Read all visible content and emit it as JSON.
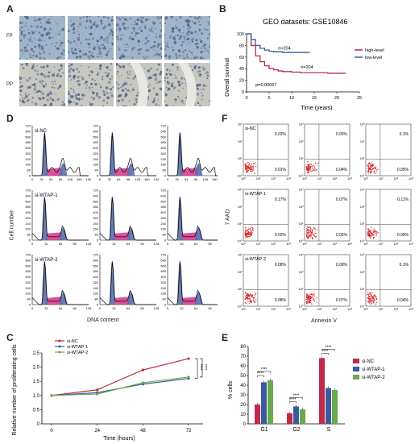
{
  "panels": {
    "A": "A",
    "B": "B",
    "C": "C",
    "D": "D",
    "E": "E",
    "F": "F"
  },
  "panel_a": {
    "row_labels": [
      "FP",
      "PP"
    ]
  },
  "chart_data": [
    {
      "id": "B",
      "type": "line",
      "title": "GEO datasets: GSE10846",
      "xlabel": "Time (years)",
      "ylabel": "Overall survival",
      "xlim": [
        0,
        25
      ],
      "ylim": [
        0,
        100
      ],
      "xticks": [
        0,
        5,
        10,
        15,
        20,
        25
      ],
      "yticks": [
        0,
        20,
        40,
        60,
        80,
        100
      ],
      "legend_position": "right",
      "annotations": [
        "n=204",
        "n=204",
        "p=0.00667"
      ],
      "series": [
        {
          "name": "high-level",
          "color": "#c0294a",
          "x": [
            0,
            1,
            2,
            3,
            4,
            5,
            6,
            7,
            8,
            10,
            12,
            15,
            18,
            22
          ],
          "y": [
            100,
            80,
            62,
            52,
            45,
            40,
            38,
            36,
            35,
            34,
            33,
            33,
            32,
            32
          ]
        },
        {
          "name": "low-level",
          "color": "#3a5a9a",
          "x": [
            0,
            1,
            2,
            3,
            4,
            5,
            6,
            8,
            10,
            12,
            14
          ],
          "y": [
            100,
            90,
            80,
            75,
            72,
            70,
            69,
            68,
            68,
            68,
            68
          ]
        }
      ]
    },
    {
      "id": "C",
      "type": "line",
      "xlabel": "Time (hours)",
      "ylabel": "Relative number of proliferating cells",
      "xticks": [
        0,
        24,
        48,
        72
      ],
      "yticks": [
        0,
        0.5,
        1.0,
        1.5,
        2.0,
        2.5
      ],
      "yticklabels": [
        "0",
        "0.5",
        "1.0",
        "1.5",
        "2.0",
        "2.5"
      ],
      "ylim": [
        0,
        2.5
      ],
      "significance": [
        "****",
        "****"
      ],
      "legend_position": "top",
      "series": [
        {
          "name": "si-NC",
          "color": "#c0294a",
          "x": [
            0,
            24,
            48,
            72
          ],
          "y": [
            1.0,
            1.2,
            1.9,
            2.3
          ]
        },
        {
          "name": "si-WTAP-1",
          "color": "#3a5a9a",
          "x": [
            0,
            24,
            48,
            72
          ],
          "y": [
            1.0,
            1.1,
            1.4,
            1.6
          ]
        },
        {
          "name": "si-WTAP-2",
          "color": "#6aa84f",
          "x": [
            0,
            24,
            48,
            72
          ],
          "y": [
            1.0,
            1.05,
            1.45,
            1.65
          ]
        }
      ]
    },
    {
      "id": "E",
      "type": "bar",
      "ylabel": "% cells",
      "categories": [
        "G1",
        "G2",
        "S"
      ],
      "yticks": [
        0,
        10,
        20,
        30,
        40,
        50,
        60,
        70,
        80
      ],
      "ylim": [
        0,
        80
      ],
      "significance": [
        "****",
        "****",
        "****",
        "****",
        "****",
        "****"
      ],
      "legend_position": "right",
      "series": [
        {
          "name": "si-NC",
          "color": "#c0294a",
          "values": [
            20,
            11,
            68
          ]
        },
        {
          "name": "si-WTAP-1",
          "color": "#3a5a9a",
          "values": [
            43,
            18,
            37
          ]
        },
        {
          "name": "si-WTAP-2",
          "color": "#6aa84f",
          "values": [
            45,
            15,
            35
          ]
        }
      ]
    }
  ],
  "panel_d": {
    "xlabel": "DNA content",
    "ylabel": "Cell number",
    "row_labels": [
      "si-NC",
      "si-WTAP-1",
      "si-WTAP-2"
    ],
    "yticks": [
      "0",
      "80",
      "160",
      "240",
      "320",
      "400",
      "480",
      "560",
      "640",
      "720"
    ],
    "xticks_row1": [
      "0",
      "32",
      "64",
      "96",
      "128",
      "160",
      "192"
    ],
    "xticks": [
      "0",
      "32",
      "64",
      "96",
      "128"
    ]
  },
  "panel_f": {
    "xlabel": "Annexin V",
    "ylabel": "7 AAD",
    "row_labels": [
      "si-NC",
      "si-WTAP-1",
      "si-WTAP-2"
    ],
    "tick_labels": [
      "10⁰",
      "10¹",
      "10²",
      "10³"
    ],
    "upper_right": [
      [
        "0.02%",
        "0.03%",
        "0.1%"
      ],
      [
        "0.17%",
        "0.07%",
        "0.11%"
      ],
      [
        "0.08%",
        "0.09%",
        "0.1%"
      ]
    ],
    "lower_right": [
      [
        "0.01%",
        "0.04%",
        "0.05%"
      ],
      [
        "0.02%",
        "0.05%",
        "0.05%"
      ],
      [
        "0.08%",
        "0.07%",
        "0.04%"
      ]
    ]
  }
}
